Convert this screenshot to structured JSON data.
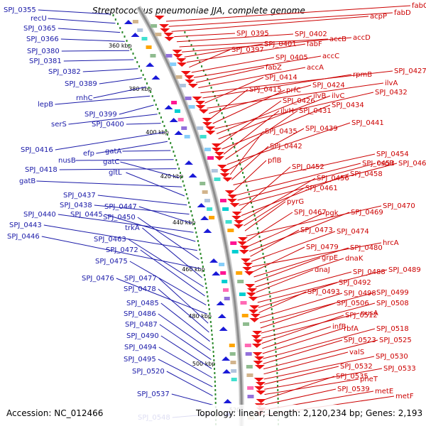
{
  "title": "Streptococcus pneumoniae JJA, complete genome",
  "footer": {
    "accession": "Accession: NC_012466",
    "summary": "Topology: linear; Length: 2,120,234 bp; Genes: 2,193"
  },
  "colors": {
    "left_label": "#1a1aa8",
    "right_label": "#cc0000",
    "backbone": "#9a9a9a",
    "forward_gene": "#ee1111",
    "reverse_gene": "#1a1ad8",
    "gc_dots": "#2e8b2e"
  },
  "ticks": [
    "360 kbp",
    "380 kbp",
    "400 kbp",
    "420 kbp",
    "440 kbp",
    "460 kbp",
    "480 kbp",
    "500 kbp",
    "520"
  ],
  "left_labels": [
    "SPJ_0355",
    "recU",
    "SPJ_0365",
    "SPJ_0366",
    "SPJ_0380",
    "SPJ_0381",
    "SPJ_0382",
    "SPJ_0389",
    "rnhC",
    "lepB",
    "SPJ_0399",
    "serS",
    "SPJ_0400",
    "SPJ_0416",
    "efp",
    "gatA",
    "nusB",
    "SPJ_0418",
    "gatC",
    "gatB",
    "gltL",
    "SPJ_0437",
    "SPJ_0438",
    "SPJ_0447",
    "SPJ_0440",
    "SPJ_0445",
    "SPJ_0443",
    "SPJ_0450",
    "SPJ_0446",
    "trkA",
    "SPJ_0463",
    "SPJ_0472",
    "SPJ_0475",
    "SPJ_0476",
    "SPJ_0477",
    "SPJ_0478",
    "SPJ_0485",
    "SPJ_0486",
    "SPJ_0487",
    "SPJ_0490",
    "SPJ_0494",
    "SPJ_0495",
    "SPJ_0520",
    "SPJ_0537",
    "SPJ_0548"
  ],
  "right_labels": [
    "fabG",
    "fabD",
    "acpP",
    "SPJ_0395",
    "SPJ_0402",
    "accB",
    "accD",
    "SPJ_0401",
    "fabF",
    "SPJ_0397",
    "SPJ_0405",
    "accC",
    "fabZ",
    "accA",
    "SPJ_0427",
    "rpmB",
    "SPJ_0414",
    "ilvA",
    "SPJ_0424",
    "SPJ_0415",
    "prfC",
    "SPJ_0432",
    "ilvB",
    "ilvC",
    "SPJ_0426",
    "SPJ_0434",
    "ilvH",
    "SPJ_0431",
    "SPJ_0441",
    "SPJ_0439",
    "SPJ_0435",
    "SPJ_0442",
    "SPJ_0454",
    "pflB",
    "SPJ_0453",
    "cspR",
    "SPJ_0460",
    "SPJ_0452",
    "SPJ_0458",
    "SPJ_0456",
    "SPJ_0461",
    "pyrG",
    "SPJ_0470",
    "SPJ_0467",
    "pgk",
    "SPJ_0469",
    "SPJ_0473",
    "SPJ_0474",
    "hrcA",
    "SPJ_0479",
    "SPJ_0480",
    "grpE",
    "dnaK",
    "dnaJ",
    "SPJ_0488",
    "SPJ_0489",
    "SPJ_0492",
    "SPJ_0493",
    "SPJ_0498",
    "SPJ_0499",
    "SPJ_0506",
    "SPJ_0508",
    "nusA",
    "SPJ_0512",
    "infB",
    "rbfA",
    "SPJ_0518",
    "SPJ_0523",
    "SPJ_0525",
    "valS",
    "SPJ_0530",
    "SPJ_0532",
    "SPJ_0533",
    "pheT",
    "SPJ_0535",
    "SPJ_0539",
    "metE",
    "metF"
  ]
}
